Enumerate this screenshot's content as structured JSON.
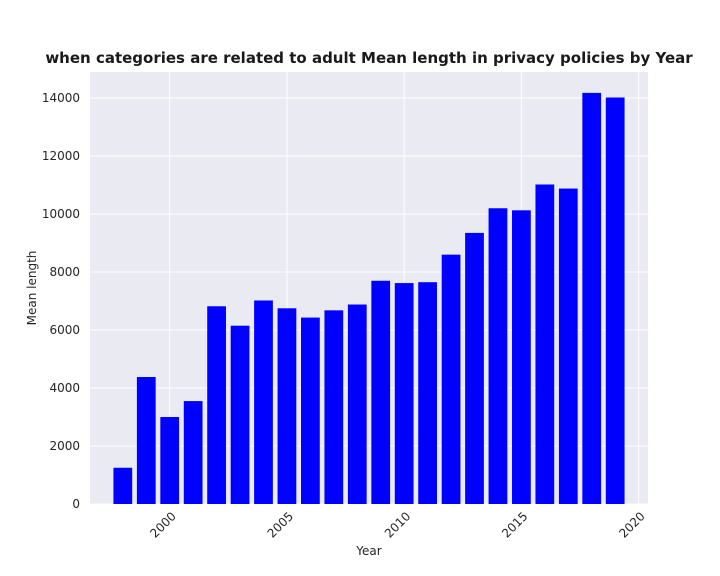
{
  "chart_data": {
    "type": "bar",
    "title": "when categories are related to adult Mean length in privacy policies by Year",
    "xlabel": "Year",
    "ylabel": "Mean length",
    "x": [
      1998,
      1999,
      2000,
      2001,
      2002,
      2003,
      2004,
      2005,
      2006,
      2007,
      2008,
      2009,
      2010,
      2011,
      2012,
      2013,
      2014,
      2015,
      2016,
      2017,
      2018,
      2019
    ],
    "values": [
      1250,
      4380,
      3000,
      3550,
      6820,
      6150,
      7020,
      6750,
      6430,
      6680,
      6880,
      7700,
      7620,
      7650,
      8600,
      9350,
      10200,
      10130,
      11020,
      10880,
      14180,
      14020
    ],
    "xlim": [
      1996.6,
      2020.4
    ],
    "ylim": [
      0,
      14900
    ],
    "xticks": [
      2000,
      2005,
      2010,
      2015,
      2020
    ],
    "yticks": [
      0,
      2000,
      4000,
      6000,
      8000,
      10000,
      12000,
      14000
    ],
    "bar_color": "#0000ff",
    "background_color": "#eaeaf2",
    "grid": true
  }
}
